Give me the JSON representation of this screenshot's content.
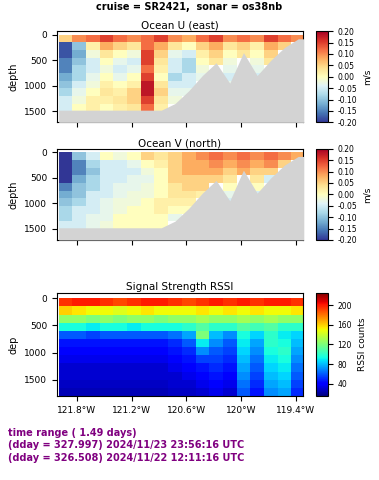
{
  "title": "cruise = SR2421,  sonar = os38nb",
  "annotations": [
    {
      "text": "time range ( 1.49 days)",
      "color": "#800080"
    },
    {
      "text": "(dday = 327.997) 2024/11/23 23:56:16 UTC",
      "color": "#800080"
    },
    {
      "text": "(dday = 326.508) 2024/11/22 12:11:16 UTC",
      "color": "#800080"
    }
  ],
  "chart_data": [
    {
      "type": "heatmap",
      "title": "Ocean U (east)",
      "y_label": "depth",
      "tick_labels": "y",
      "xlim": [
        -122.02,
        -119.32
      ],
      "ylim": [
        1720,
        -70
      ],
      "xticks": [
        {
          "value": -121.8,
          "label": "121.8°W"
        },
        {
          "value": -121.2,
          "label": "121.2°W"
        },
        {
          "value": -120.6,
          "label": "120.6°W"
        },
        {
          "value": -120.0,
          "label": "120°W"
        },
        {
          "value": -119.4,
          "label": "119.4°W"
        }
      ],
      "yticks": [
        0,
        500,
        1000,
        1500
      ],
      "x_edges": [
        -122.0,
        -121.85,
        -121.7,
        -121.55,
        -121.4,
        -121.25,
        -121.1,
        -120.95,
        -120.8,
        -120.65,
        -120.5,
        -120.35,
        -120.2,
        -120.05,
        -119.9,
        -119.75,
        -119.6,
        -119.45,
        -119.3
      ],
      "depth_edges": [
        0,
        150,
        300,
        450,
        600,
        750,
        900,
        1050,
        1200,
        1350,
        1500
      ],
      "values": [
        [
          0.05,
          0.1,
          0.12,
          0.15,
          0.12,
          0.1,
          0.12,
          0.15,
          0.1,
          0.08,
          0.12,
          0.15,
          0.1,
          0.12,
          0.1,
          0.15,
          0.12,
          0.1
        ],
        [
          -0.18,
          -0.1,
          0.02,
          0.08,
          0.05,
          0.03,
          0.12,
          0.08,
          0.03,
          0.0,
          0.05,
          0.08,
          0.03,
          0.05,
          0.02,
          0.08,
          0.05,
          null
        ],
        [
          -0.18,
          -0.12,
          -0.02,
          0.03,
          0.0,
          -0.02,
          0.15,
          0.05,
          -0.03,
          -0.05,
          0.02,
          0.05,
          0.0,
          0.03,
          0.0,
          0.05,
          null,
          null
        ],
        [
          -0.15,
          -0.1,
          -0.05,
          0.0,
          -0.03,
          -0.05,
          0.15,
          0.03,
          -0.05,
          -0.08,
          0.0,
          0.03,
          -0.02,
          null,
          -0.02,
          0.03,
          null,
          null
        ],
        [
          -0.15,
          -0.08,
          -0.05,
          -0.02,
          -0.05,
          -0.03,
          0.12,
          0.02,
          -0.05,
          -0.08,
          -0.02,
          null,
          -0.03,
          null,
          -0.03,
          null,
          null,
          null
        ],
        [
          -0.12,
          -0.08,
          -0.03,
          0.0,
          -0.03,
          0.0,
          0.15,
          0.0,
          -0.08,
          -0.05,
          -0.03,
          null,
          -0.05,
          null,
          -0.05,
          null,
          null,
          null
        ],
        [
          -0.1,
          -0.05,
          -0.02,
          0.02,
          0.0,
          0.02,
          0.18,
          0.03,
          -0.05,
          -0.05,
          null,
          null,
          -0.03,
          null,
          null,
          null,
          null,
          null
        ],
        [
          -0.08,
          -0.03,
          0.0,
          0.03,
          0.02,
          0.05,
          0.18,
          0.05,
          -0.03,
          -0.03,
          null,
          null,
          null,
          null,
          null,
          null,
          null,
          null
        ],
        [
          -0.05,
          -0.02,
          0.02,
          0.02,
          0.03,
          0.05,
          0.15,
          0.03,
          -0.02,
          null,
          null,
          null,
          null,
          null,
          null,
          null,
          null,
          null
        ],
        [
          -0.05,
          0.0,
          0.02,
          0.0,
          0.02,
          0.03,
          0.12,
          0.02,
          null,
          null,
          null,
          null,
          null,
          null,
          null,
          null,
          null,
          null
        ]
      ],
      "bottom": {
        "x": [
          -122.0,
          -121.925,
          -121.775,
          -121.625,
          -121.475,
          -121.325,
          -121.175,
          -121.025,
          -120.875,
          -120.725,
          -120.575,
          -120.425,
          -120.275,
          -120.125,
          -119.975,
          -119.825,
          -119.675,
          -119.525,
          -119.375,
          -119.3
        ],
        "depth": [
          1480,
          1480,
          1480,
          1480,
          1480,
          1480,
          1480,
          1480,
          1480,
          1350,
          1100,
          800,
          550,
          950,
          350,
          800,
          500,
          250,
          80,
          80
        ]
      },
      "colorbar": {
        "label": "m/s",
        "range": [
          -0.2,
          0.2
        ],
        "ticks": [
          {
            "value": -0.2,
            "label": "-0.20"
          },
          {
            "value": -0.15,
            "label": "-0.15"
          },
          {
            "value": -0.1,
            "label": "-0.10"
          },
          {
            "value": -0.05,
            "label": "-0.05"
          },
          {
            "value": 0.0,
            "label": "0.00"
          },
          {
            "value": 0.05,
            "label": "0.05"
          },
          {
            "value": 0.1,
            "label": "0.10"
          },
          {
            "value": 0.15,
            "label": "0.15"
          },
          {
            "value": 0.2,
            "label": "0.20"
          }
        ]
      }
    },
    {
      "type": "heatmap",
      "title": "Ocean V (north)",
      "y_label": "depth",
      "tick_labels": "y",
      "xlim": [
        -122.02,
        -119.32
      ],
      "ylim": [
        1720,
        -70
      ],
      "xticks": [
        {
          "value": -121.8,
          "label": "121.8°W"
        },
        {
          "value": -121.2,
          "label": "121.2°W"
        },
        {
          "value": -120.6,
          "label": "120.6°W"
        },
        {
          "value": -120.0,
          "label": "120°W"
        },
        {
          "value": -119.4,
          "label": "119.4°W"
        }
      ],
      "yticks": [
        0,
        500,
        1000,
        1500
      ],
      "x_edges": [
        -122.0,
        -121.85,
        -121.7,
        -121.55,
        -121.4,
        -121.25,
        -121.1,
        -120.95,
        -120.8,
        -120.65,
        -120.5,
        -120.35,
        -120.2,
        -120.05,
        -119.9,
        -119.75,
        -119.6,
        -119.45,
        -119.3
      ],
      "depth_edges": [
        0,
        150,
        300,
        450,
        600,
        750,
        900,
        1050,
        1200,
        1350,
        1500
      ],
      "values": [
        [
          -0.2,
          -0.1,
          -0.05,
          0.0,
          -0.02,
          0.0,
          0.05,
          0.03,
          0.05,
          0.08,
          0.1,
          0.12,
          0.1,
          0.12,
          0.1,
          0.12,
          0.1,
          0.08
        ],
        [
          -0.2,
          -0.15,
          -0.08,
          -0.05,
          -0.05,
          -0.03,
          0.0,
          0.02,
          0.05,
          0.08,
          0.08,
          0.1,
          0.08,
          0.1,
          0.08,
          0.1,
          0.05,
          null
        ],
        [
          -0.2,
          -0.15,
          -0.1,
          -0.05,
          -0.05,
          -0.05,
          -0.02,
          0.0,
          0.05,
          0.08,
          0.08,
          0.08,
          0.05,
          0.08,
          0.05,
          0.05,
          null,
          null
        ],
        [
          -0.2,
          -0.12,
          -0.08,
          -0.05,
          -0.05,
          -0.03,
          -0.03,
          0.0,
          0.05,
          0.05,
          0.05,
          0.05,
          0.03,
          null,
          0.03,
          -0.05,
          null,
          null
        ],
        [
          -0.15,
          -0.1,
          -0.08,
          -0.05,
          -0.03,
          -0.03,
          -0.02,
          0.0,
          0.03,
          0.05,
          0.05,
          null,
          0.0,
          null,
          0.0,
          null,
          null,
          null
        ],
        [
          -0.12,
          -0.1,
          -0.05,
          -0.05,
          -0.03,
          -0.02,
          -0.02,
          0.0,
          0.03,
          0.03,
          0.02,
          null,
          -0.03,
          null,
          -0.05,
          null,
          null,
          null
        ],
        [
          -0.1,
          -0.08,
          -0.05,
          -0.03,
          -0.02,
          -0.02,
          0.0,
          0.02,
          0.02,
          0.02,
          null,
          null,
          -0.05,
          null,
          null,
          null,
          null,
          null
        ],
        [
          -0.08,
          -0.05,
          -0.05,
          -0.03,
          -0.02,
          0.0,
          0.0,
          0.02,
          0.0,
          0.0,
          null,
          null,
          null,
          null,
          null,
          null,
          null,
          null
        ],
        [
          -0.08,
          -0.05,
          -0.03,
          -0.03,
          0.0,
          0.0,
          0.0,
          0.0,
          -0.03,
          null,
          null,
          null,
          null,
          null,
          null,
          null,
          null,
          null
        ],
        [
          -0.05,
          -0.05,
          -0.03,
          -0.02,
          0.0,
          0.0,
          0.0,
          0.0,
          null,
          null,
          null,
          null,
          null,
          null,
          null,
          null,
          null,
          null
        ]
      ],
      "bottom": {
        "x": [
          -122.0,
          -121.925,
          -121.775,
          -121.625,
          -121.475,
          -121.325,
          -121.175,
          -121.025,
          -120.875,
          -120.725,
          -120.575,
          -120.425,
          -120.275,
          -120.125,
          -119.975,
          -119.825,
          -119.675,
          -119.525,
          -119.375,
          -119.3
        ],
        "depth": [
          1480,
          1480,
          1480,
          1480,
          1480,
          1480,
          1480,
          1480,
          1480,
          1350,
          1100,
          800,
          550,
          950,
          350,
          800,
          500,
          250,
          80,
          80
        ]
      },
      "colorbar": {
        "label": "m/s",
        "range": [
          -0.2,
          0.2
        ],
        "ticks": [
          {
            "value": -0.2,
            "label": "-0.20"
          },
          {
            "value": -0.15,
            "label": "-0.15"
          },
          {
            "value": -0.1,
            "label": "-0.10"
          },
          {
            "value": -0.05,
            "label": "-0.05"
          },
          {
            "value": 0.0,
            "label": "0.00"
          },
          {
            "value": 0.05,
            "label": "0.05"
          },
          {
            "value": 0.1,
            "label": "0.10"
          },
          {
            "value": 0.15,
            "label": "0.15"
          },
          {
            "value": 0.2,
            "label": "0.20"
          }
        ]
      }
    },
    {
      "type": "heatmap",
      "title": "Signal Strength RSSI",
      "y_label": "dep",
      "xlim": [
        -122.02,
        -119.32
      ],
      "ylim": [
        1800,
        -100
      ],
      "xticks": [
        {
          "value": -121.8,
          "label": "121.8°W"
        },
        {
          "value": -121.2,
          "label": "121.2°W"
        },
        {
          "value": -120.6,
          "label": "120.6°W"
        },
        {
          "value": -120.0,
          "label": "120°W"
        },
        {
          "value": -119.4,
          "label": "119.4°W"
        }
      ],
      "yticks": [
        0,
        500,
        1000,
        1500
      ],
      "x_edges": [
        -122.0,
        -121.85,
        -121.7,
        -121.55,
        -121.4,
        -121.25,
        -121.1,
        -120.95,
        -120.8,
        -120.65,
        -120.5,
        -120.35,
        -120.2,
        -120.05,
        -119.9,
        -119.75,
        -119.6,
        -119.45,
        -119.3
      ],
      "depth_edges": [
        0,
        150,
        300,
        450,
        600,
        750,
        900,
        1050,
        1200,
        1350,
        1500,
        1650,
        1800
      ],
      "values": [
        [
          195,
          200,
          200,
          195,
          190,
          195,
          200,
          200,
          195,
          190,
          195,
          200,
          195,
          200,
          195,
          200,
          200,
          195
        ],
        [
          160,
          155,
          150,
          150,
          145,
          150,
          155,
          150,
          150,
          150,
          155,
          150,
          155,
          150,
          155,
          150,
          150,
          155
        ],
        [
          125,
          125,
          120,
          125,
          120,
          125,
          125,
          120,
          125,
          125,
          130,
          125,
          125,
          130,
          125,
          130,
          125,
          125
        ],
        [
          95,
          95,
          90,
          95,
          95,
          90,
          95,
          95,
          95,
          100,
          110,
          100,
          100,
          110,
          105,
          110,
          100,
          100
        ],
        [
          60,
          60,
          55,
          60,
          60,
          60,
          60,
          60,
          65,
          75,
          120,
          80,
          70,
          95,
          85,
          100,
          90,
          85
        ],
        [
          45,
          45,
          45,
          45,
          45,
          45,
          45,
          45,
          50,
          60,
          90,
          70,
          60,
          90,
          75,
          100,
          95,
          80
        ],
        [
          40,
          40,
          40,
          40,
          40,
          40,
          40,
          40,
          45,
          50,
          70,
          60,
          55,
          85,
          70,
          95,
          100,
          75
        ],
        [
          35,
          35,
          35,
          35,
          35,
          35,
          35,
          35,
          40,
          45,
          55,
          55,
          50,
          80,
          65,
          90,
          95,
          70
        ],
        [
          30,
          30,
          30,
          30,
          30,
          30,
          30,
          30,
          35,
          40,
          45,
          50,
          45,
          75,
          60,
          85,
          90,
          65
        ],
        [
          30,
          30,
          30,
          30,
          30,
          30,
          30,
          30,
          30,
          35,
          40,
          45,
          40,
          70,
          55,
          80,
          85,
          60
        ],
        [
          28,
          28,
          28,
          28,
          28,
          28,
          28,
          28,
          30,
          30,
          35,
          40,
          35,
          65,
          50,
          75,
          80,
          55
        ],
        [
          25,
          25,
          25,
          25,
          25,
          25,
          25,
          25,
          28,
          28,
          30,
          35,
          30,
          60,
          45,
          70,
          75,
          50
        ]
      ],
      "colorbar": {
        "label": "RSSI counts",
        "range": [
          15,
          225
        ],
        "ticks": [
          40,
          80,
          120,
          160,
          200
        ]
      }
    }
  ]
}
